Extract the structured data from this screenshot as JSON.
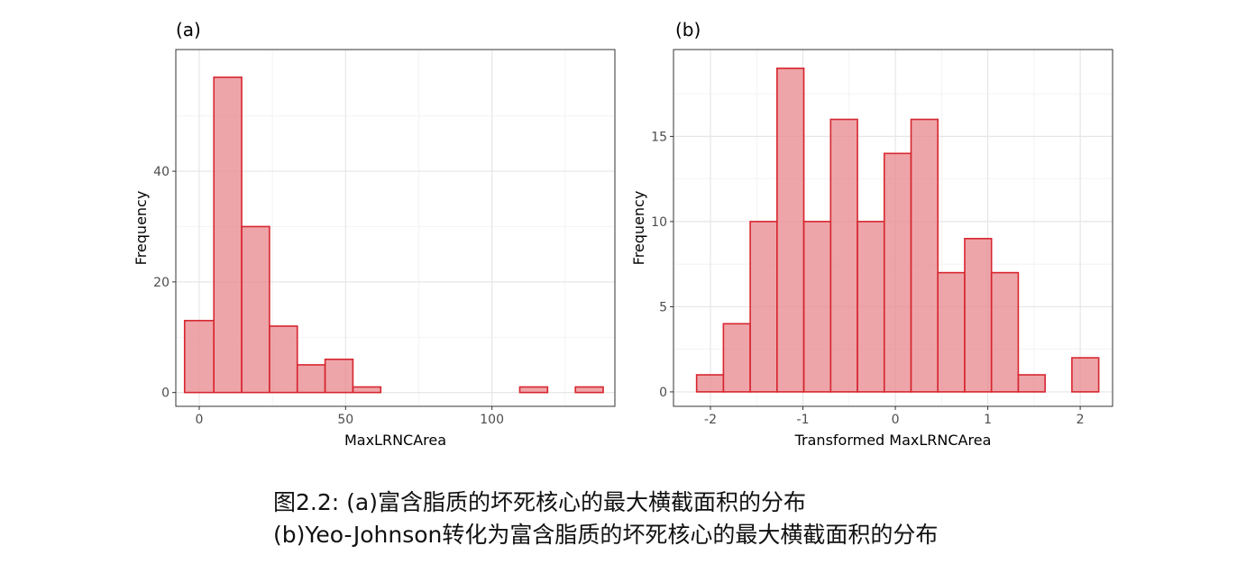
{
  "chart_data": [
    {
      "type": "bar",
      "panel_label": "(a)",
      "xlabel": "MaxLRNCArea",
      "ylabel": "Frequency",
      "xlim": [
        -8,
        142
      ],
      "ylim": [
        -2.5,
        62
      ],
      "xticks": [
        0,
        50,
        100
      ],
      "yticks": [
        0,
        20,
        40
      ],
      "bins": [
        {
          "start": -5,
          "end": 5,
          "count": 13
        },
        {
          "start": 5,
          "end": 14.5,
          "count": 57
        },
        {
          "start": 14.5,
          "end": 24,
          "count": 30
        },
        {
          "start": 24,
          "end": 33.5,
          "count": 12
        },
        {
          "start": 33.5,
          "end": 43,
          "count": 5
        },
        {
          "start": 43,
          "end": 52.5,
          "count": 6
        },
        {
          "start": 52.5,
          "end": 62,
          "count": 1
        },
        {
          "start": 62,
          "end": 71.5,
          "count": 0
        },
        {
          "start": 71.5,
          "end": 81,
          "count": 0
        },
        {
          "start": 81,
          "end": 90.5,
          "count": 0
        },
        {
          "start": 90.5,
          "end": 100,
          "count": 0
        },
        {
          "start": 100,
          "end": 109.5,
          "count": 0
        },
        {
          "start": 109.5,
          "end": 119,
          "count": 1
        },
        {
          "start": 119,
          "end": 128.5,
          "count": 0
        },
        {
          "start": 128.5,
          "end": 138,
          "count": 1
        }
      ],
      "grid": true,
      "colors": {
        "fill": "#e8878c",
        "stroke": "#d7262f"
      }
    },
    {
      "type": "bar",
      "panel_label": "(b)",
      "xlabel": "Transformed MaxLRNCArea",
      "ylabel": "Frequency",
      "xlim": [
        -2.4,
        2.35
      ],
      "ylim": [
        -0.85,
        20.1
      ],
      "xticks": [
        -2,
        -1,
        0,
        1,
        2
      ],
      "yticks": [
        0,
        5,
        10,
        15
      ],
      "bins": [
        {
          "start": -2.15,
          "end": -1.86,
          "count": 1
        },
        {
          "start": -1.86,
          "end": -1.57,
          "count": 4
        },
        {
          "start": -1.57,
          "end": -1.28,
          "count": 10
        },
        {
          "start": -1.28,
          "end": -0.99,
          "count": 19
        },
        {
          "start": -0.99,
          "end": -0.7,
          "count": 10
        },
        {
          "start": -0.7,
          "end": -0.41,
          "count": 16
        },
        {
          "start": -0.41,
          "end": -0.12,
          "count": 10
        },
        {
          "start": -0.12,
          "end": 0.17,
          "count": 14
        },
        {
          "start": 0.17,
          "end": 0.46,
          "count": 16
        },
        {
          "start": 0.46,
          "end": 0.75,
          "count": 7
        },
        {
          "start": 0.75,
          "end": 1.04,
          "count": 9
        },
        {
          "start": 1.04,
          "end": 1.33,
          "count": 7
        },
        {
          "start": 1.33,
          "end": 1.62,
          "count": 1
        },
        {
          "start": 1.62,
          "end": 1.91,
          "count": 0
        },
        {
          "start": 1.91,
          "end": 2.2,
          "count": 2
        }
      ],
      "grid": true,
      "colors": {
        "fill": "#e8878c",
        "stroke": "#d7262f"
      }
    }
  ],
  "caption": {
    "line1": "图2.2: (a)富含脂质的坏死核心的最大横截面积的分布",
    "line2": "(b)Yeo-Johnson转化为富含脂质的坏死核心的最大横截面积的分布"
  }
}
